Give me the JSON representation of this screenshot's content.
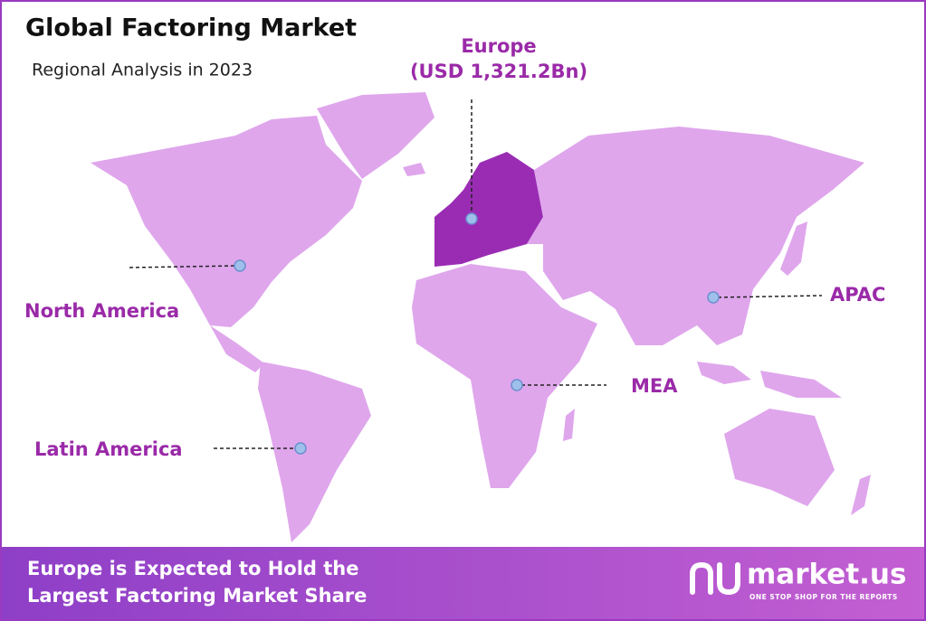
{
  "header": {
    "title": "Global Factoring Market",
    "subtitle": "Regional Analysis in 2023"
  },
  "regions": [
    {
      "label": "Europe",
      "value_label": "(USD 1,321.2Bn)"
    },
    {
      "label": "North America"
    },
    {
      "label": "Latin America"
    },
    {
      "label": "MEA"
    },
    {
      "label": "APAC"
    }
  ],
  "footer": {
    "lines": [
      "Europe is Expected to Hold the",
      "Largest Factoring Market Share"
    ],
    "brand": "market.us",
    "tagline": "ONE STOP SHOP FOR THE REPORTS"
  }
}
